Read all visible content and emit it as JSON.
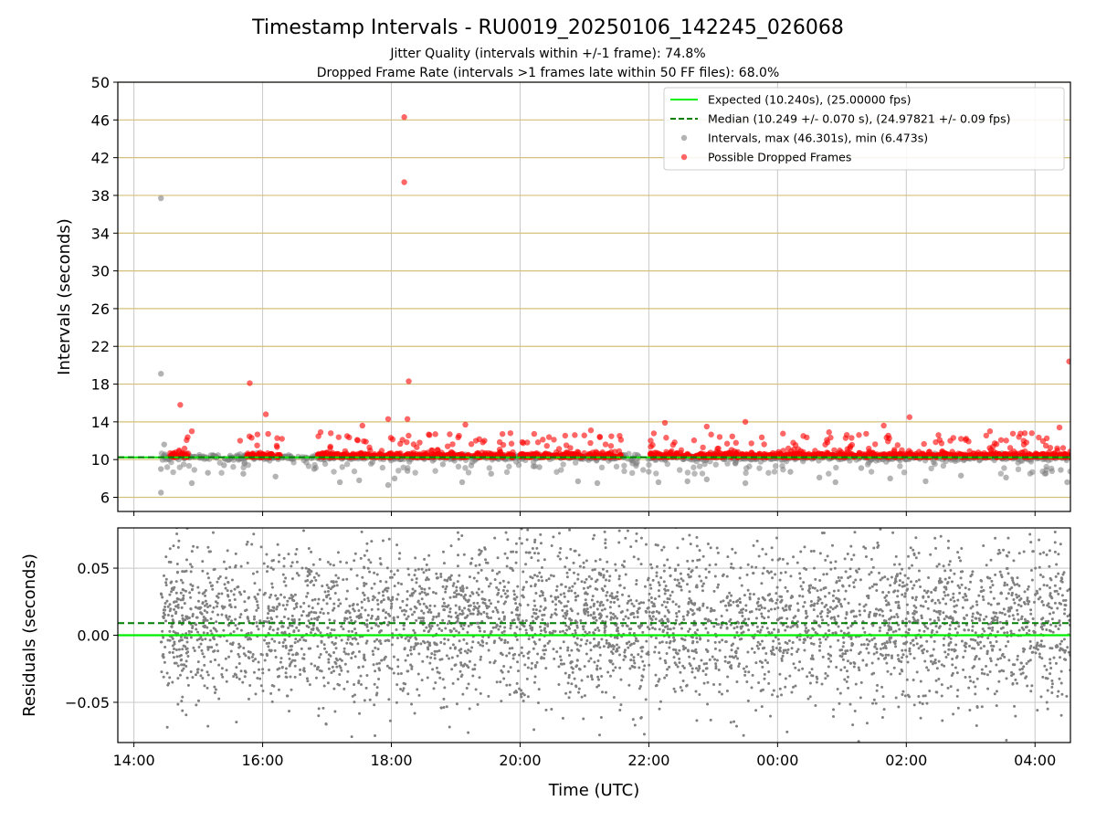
{
  "title": "Timestamp Intervals - RU0019_20250106_142245_026068",
  "subtitle1": "Jitter Quality (intervals within +/-1 frame): 74.8%",
  "subtitle2": "Dropped Frame Rate (intervals >1 frames late within 50 FF files): 68.0%",
  "colors": {
    "expected": "#00ee00",
    "median": "#007f00",
    "intervals": "#808080",
    "dropped": "#ff0000",
    "grid_major": "#c8c8c8",
    "grid_gold": "#d4c07a"
  },
  "chart_data": [
    {
      "type": "scatter",
      "ylabel": "Intervals (seconds)",
      "xlim_hours": [
        13.75,
        28.55
      ],
      "ylim": [
        4.5,
        50
      ],
      "y_ticks": [
        "6",
        "10",
        "14",
        "18",
        "22",
        "26",
        "30",
        "34",
        "38",
        "42",
        "46",
        "50"
      ],
      "grid": true,
      "legend_position": "upper right",
      "legend": [
        {
          "key": "expected",
          "label": "Expected (10.240s), (25.00000 fps)"
        },
        {
          "key": "median",
          "label": "Median (10.249 +/- 0.070 s), (24.97821 +/- 0.09 fps)"
        },
        {
          "key": "intervals",
          "label": "Intervals, max (46.301s), min (6.473s)"
        },
        {
          "key": "dropped",
          "label": "Possible Dropped Frames"
        }
      ],
      "expected": 10.24,
      "median": 10.249,
      "intervals_sample": [
        {
          "x": 14.42,
          "y": 37.7
        },
        {
          "x": 14.42,
          "y": 19.1
        },
        {
          "x": 14.42,
          "y": 9.0
        },
        {
          "x": 14.42,
          "y": 6.5
        },
        {
          "x": 14.47,
          "y": 11.6
        },
        {
          "x": 14.9,
          "y": 7.5
        },
        {
          "x": 15.15,
          "y": 8.6
        },
        {
          "x": 15.4,
          "y": 9.4
        },
        {
          "x": 15.7,
          "y": 8.5
        },
        {
          "x": 16.2,
          "y": 8.2
        },
        {
          "x": 16.8,
          "y": 9.0
        },
        {
          "x": 17.2,
          "y": 7.6
        },
        {
          "x": 17.5,
          "y": 7.8
        },
        {
          "x": 17.95,
          "y": 7.3
        },
        {
          "x": 18.05,
          "y": 8.0
        },
        {
          "x": 18.25,
          "y": 8.8
        },
        {
          "x": 18.8,
          "y": 9.5
        },
        {
          "x": 19.1,
          "y": 7.6
        },
        {
          "x": 19.55,
          "y": 8.5
        },
        {
          "x": 20.3,
          "y": 9.2
        },
        {
          "x": 20.9,
          "y": 7.7
        },
        {
          "x": 21.2,
          "y": 7.5
        },
        {
          "x": 22.15,
          "y": 7.6
        },
        {
          "x": 22.6,
          "y": 7.7
        },
        {
          "x": 22.9,
          "y": 7.9
        },
        {
          "x": 23.5,
          "y": 7.5
        },
        {
          "x": 24.2,
          "y": 8.7
        },
        {
          "x": 24.65,
          "y": 8.1
        },
        {
          "x": 24.9,
          "y": 7.6
        },
        {
          "x": 25.3,
          "y": 9.1
        },
        {
          "x": 25.75,
          "y": 8.0
        },
        {
          "x": 26.3,
          "y": 7.7
        },
        {
          "x": 26.85,
          "y": 8.3
        },
        {
          "x": 27.55,
          "y": 8.1
        },
        {
          "x": 28.4,
          "y": 8.9
        },
        {
          "x": 28.5,
          "y": 7.6
        }
      ],
      "dropped_sample": [
        {
          "x": 18.2,
          "y": 46.3
        },
        {
          "x": 18.2,
          "y": 39.4
        },
        {
          "x": 18.27,
          "y": 18.3
        },
        {
          "x": 15.8,
          "y": 18.1
        },
        {
          "x": 14.72,
          "y": 15.8
        },
        {
          "x": 16.05,
          "y": 14.8
        },
        {
          "x": 28.53,
          "y": 20.4
        },
        {
          "x": 17.95,
          "y": 14.3
        },
        {
          "x": 18.25,
          "y": 14.3
        },
        {
          "x": 22.25,
          "y": 13.9
        },
        {
          "x": 23.5,
          "y": 14.0
        },
        {
          "x": 26.05,
          "y": 14.5
        },
        {
          "x": 22.9,
          "y": 13.5
        },
        {
          "x": 25.65,
          "y": 13.6
        },
        {
          "x": 28.38,
          "y": 13.4
        },
        {
          "x": 19.15,
          "y": 13.7
        },
        {
          "x": 17.55,
          "y": 13.6
        },
        {
          "x": 14.9,
          "y": 13.0
        },
        {
          "x": 21.1,
          "y": 13.1
        },
        {
          "x": 24.8,
          "y": 12.9
        },
        {
          "x": 27.3,
          "y": 13.0
        },
        {
          "x": 20.85,
          "y": 12.6
        },
        {
          "x": 19.85,
          "y": 12.8
        },
        {
          "x": 16.3,
          "y": 12.2
        },
        {
          "x": 15.65,
          "y": 12.0
        },
        {
          "x": 16.9,
          "y": 12.9
        },
        {
          "x": 23.1,
          "y": 12.4
        },
        {
          "x": 24.4,
          "y": 12.5
        },
        {
          "x": 25.15,
          "y": 12.3
        },
        {
          "x": 26.5,
          "y": 12.6
        },
        {
          "x": 27.75,
          "y": 12.4
        },
        {
          "x": 27.95,
          "y": 12.8
        },
        {
          "x": 26.85,
          "y": 12.2
        }
      ]
    },
    {
      "type": "scatter",
      "xlabel": "Time (UTC)",
      "ylabel": "Residuals (seconds)",
      "xlim_hours": [
        13.75,
        28.55
      ],
      "x_ticks": [
        "14:00",
        "16:00",
        "18:00",
        "20:00",
        "22:00",
        "00:00",
        "02:00",
        "04:00"
      ],
      "ylim": [
        -0.08,
        0.08
      ],
      "y_ticks": [
        "−0.05",
        "0.00",
        "0.05"
      ],
      "grid": true,
      "expected": 0.0,
      "median": 0.009,
      "residual_spread": 0.03,
      "data_start": 14.42,
      "data_end": 28.55
    }
  ]
}
